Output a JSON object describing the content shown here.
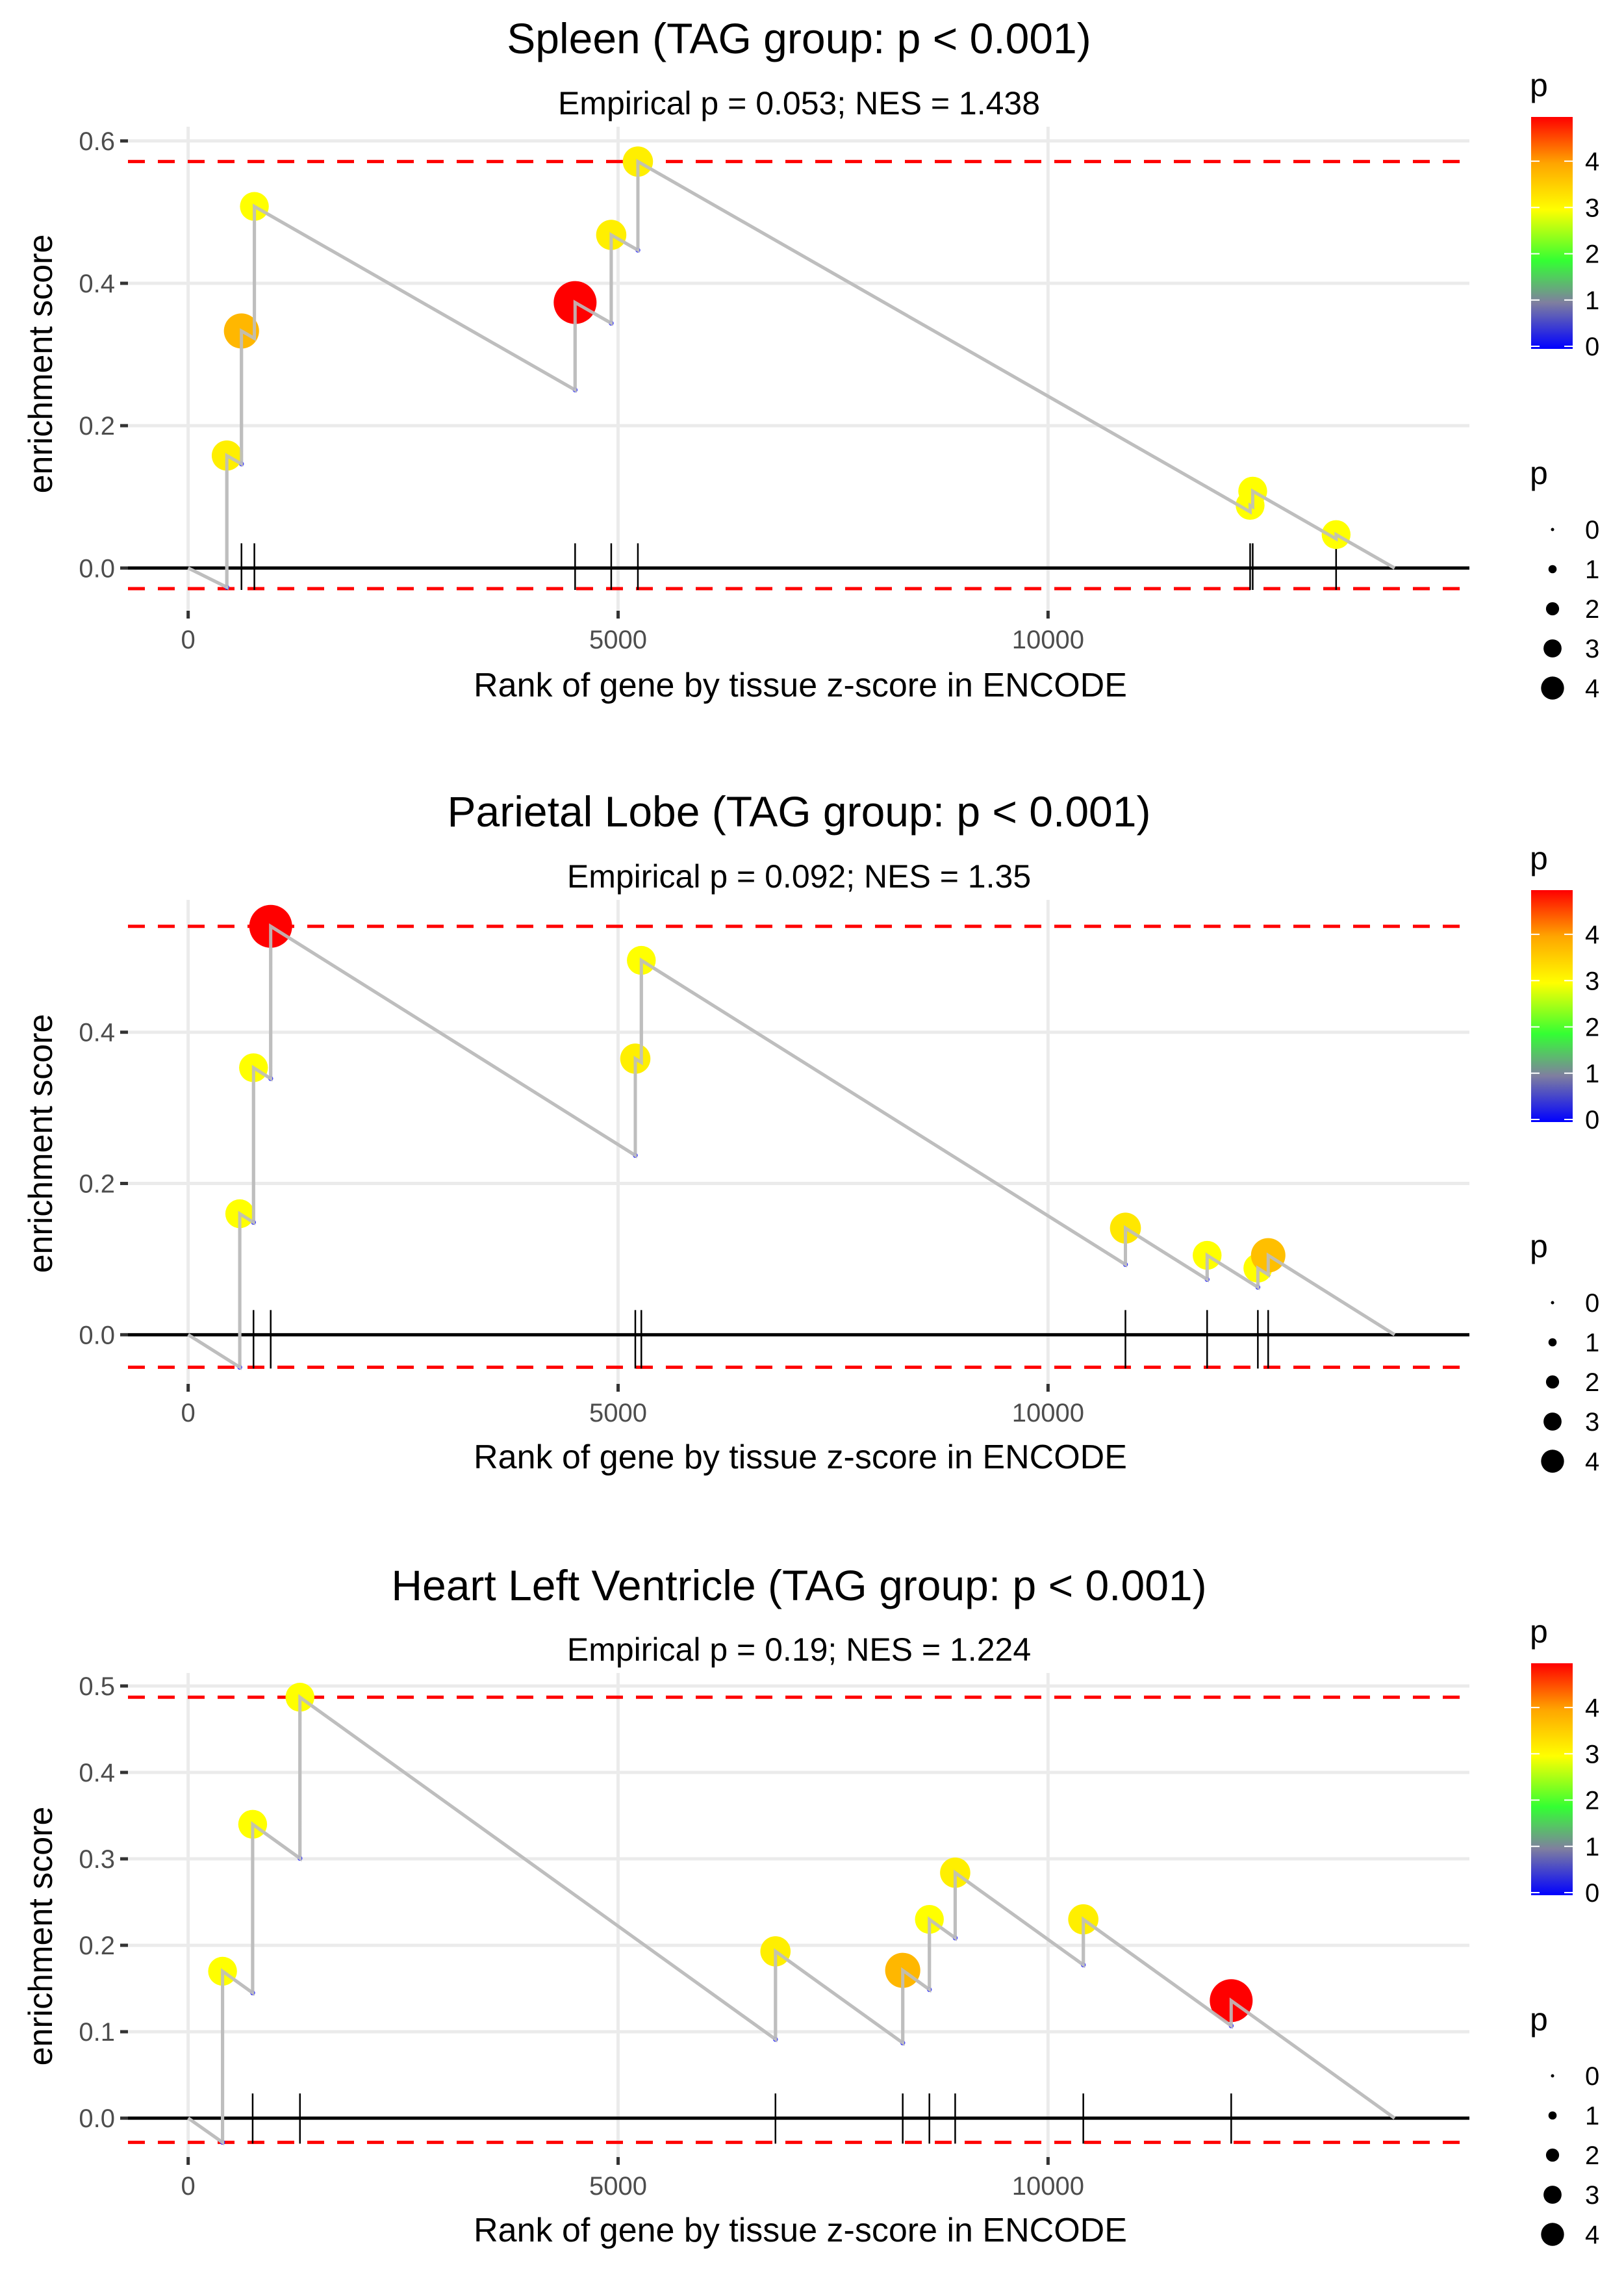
{
  "chart_data": [
    {
      "type": "line",
      "title": "Spleen (TAG group: p < 0.001)",
      "subtitle": "Empirical p = 0.053; NES = 1.438",
      "xlabel": "Rank of gene by tissue z-score in ENCODE",
      "ylabel": "enrichment score",
      "xlim": [
        -700,
        14900
      ],
      "ylim": [
        -0.06,
        0.62
      ],
      "x_ticks": [
        0,
        5000,
        10000
      ],
      "x_tick_labels": [
        "0",
        "5000",
        "10000"
      ],
      "y_ticks": [
        0.0,
        0.2,
        0.4,
        0.6
      ],
      "y_tick_labels": [
        "0.0",
        "0.2",
        "0.4",
        "0.6"
      ],
      "n_genes": 14030,
      "upper_bound": 0.571,
      "lower_bound": -0.029,
      "start_min": -0.027,
      "hits": [
        {
          "rank": 450,
          "es": 0.158,
          "p": 3.2
        },
        {
          "rank": 620,
          "es": 0.333,
          "p": 3.9
        },
        {
          "rank": 770,
          "es": 0.508,
          "p": 3.0
        },
        {
          "rank": 4500,
          "es": 0.373,
          "p": 5.0
        },
        {
          "rank": 4920,
          "es": 0.468,
          "p": 3.2
        },
        {
          "rank": 5230,
          "es": 0.571,
          "p": 3.2
        },
        {
          "rank": 12350,
          "es": 0.088,
          "p": 3.0
        },
        {
          "rank": 12380,
          "es": 0.108,
          "p": 3.0
        },
        {
          "rank": 13350,
          "es": 0.047,
          "p": 3.0
        }
      ]
    },
    {
      "type": "line",
      "title": "Parietal Lobe (TAG group: p < 0.001)",
      "subtitle": "Empirical p = 0.092; NES = 1.35",
      "xlabel": "Rank of gene by tissue z-score in ENCODE",
      "ylabel": "enrichment score",
      "xlim": [
        -700,
        14900
      ],
      "ylim": [
        -0.065,
        0.575
      ],
      "x_ticks": [
        0,
        5000,
        10000
      ],
      "x_tick_labels": [
        "0",
        "5000",
        "10000"
      ],
      "y_ticks": [
        0.0,
        0.2,
        0.4
      ],
      "y_tick_labels": [
        "0.0",
        "0.2",
        "0.4"
      ],
      "n_genes": 14030,
      "upper_bound": 0.54,
      "lower_bound": -0.043,
      "start_min": -0.043,
      "hits": [
        {
          "rank": 600,
          "es": 0.16,
          "p": 3.0
        },
        {
          "rank": 760,
          "es": 0.353,
          "p": 3.0
        },
        {
          "rank": 960,
          "es": 0.54,
          "p": 5.0
        },
        {
          "rank": 5200,
          "es": 0.365,
          "p": 3.2
        },
        {
          "rank": 5270,
          "es": 0.495,
          "p": 3.0
        },
        {
          "rank": 10900,
          "es": 0.141,
          "p": 3.3
        },
        {
          "rank": 11850,
          "es": 0.105,
          "p": 3.0
        },
        {
          "rank": 12440,
          "es": 0.088,
          "p": 3.0
        },
        {
          "rank": 12560,
          "es": 0.105,
          "p": 3.8
        }
      ]
    },
    {
      "type": "line",
      "title": "Heart Left Ventricle (TAG group: p < 0.001)",
      "subtitle": "Empirical p = 0.19; NES = 1.224",
      "xlabel": "Rank of gene by tissue z-score in ENCODE",
      "ylabel": "enrichment score",
      "xlim": [
        -700,
        14900
      ],
      "ylim": [
        -0.045,
        0.515
      ],
      "x_ticks": [
        0,
        5000,
        10000
      ],
      "x_tick_labels": [
        "0",
        "5000",
        "10000"
      ],
      "y_ticks": [
        0.0,
        0.1,
        0.2,
        0.3,
        0.4,
        0.5
      ],
      "y_tick_labels": [
        "0.0",
        "0.1",
        "0.2",
        "0.3",
        "0.4",
        "0.5"
      ],
      "n_genes": 14030,
      "upper_bound": 0.487,
      "lower_bound": -0.028,
      "start_min": -0.028,
      "hits": [
        {
          "rank": 400,
          "es": 0.17,
          "p": 3.0
        },
        {
          "rank": 750,
          "es": 0.34,
          "p": 3.0
        },
        {
          "rank": 1300,
          "es": 0.487,
          "p": 3.0
        },
        {
          "rank": 6830,
          "es": 0.193,
          "p": 3.2
        },
        {
          "rank": 8310,
          "es": 0.171,
          "p": 3.9
        },
        {
          "rank": 8620,
          "es": 0.23,
          "p": 3.0
        },
        {
          "rank": 8920,
          "es": 0.284,
          "p": 3.2
        },
        {
          "rank": 10410,
          "es": 0.23,
          "p": 3.2
        },
        {
          "rank": 12130,
          "es": 0.136,
          "p": 5.0
        }
      ]
    }
  ],
  "legend": {
    "color_title": "p",
    "color_breaks": [
      "4",
      "3",
      "2",
      "1",
      "0"
    ],
    "color_stops": [
      "#0000ff",
      "#7f7f7f",
      "#33ff00",
      "#ffff00",
      "#ff0000"
    ],
    "size_title": "p",
    "size_breaks": [
      "0",
      "1",
      "2",
      "3",
      "4"
    ]
  },
  "colors": {
    "es_line": "#bebebe",
    "bound_line": "#ff0000",
    "grid": "#ebebeb"
  }
}
